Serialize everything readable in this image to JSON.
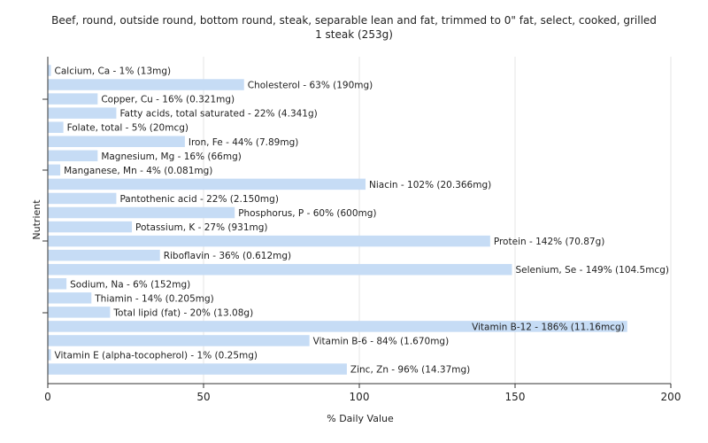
{
  "chart_data": {
    "type": "bar",
    "orientation": "horizontal",
    "title_line1": "Beef, round, outside round, bottom round, steak, separable lean and fat, trimmed to 0\" fat, select, cooked,  grilled",
    "title_line2": "1 steak (253g)",
    "xlabel": "% Daily Value",
    "ylabel": "Nutrient",
    "xlim": [
      0,
      200
    ],
    "xticks": [
      0,
      50,
      100,
      150,
      200
    ],
    "grid": true,
    "bar_color": "#c6dcf5",
    "categories": [
      "Calcium, Ca - 1% (13mg)",
      "Cholesterol - 63% (190mg)",
      "Copper, Cu - 16% (0.321mg)",
      "Fatty acids, total saturated - 22% (4.341g)",
      "Folate, total - 5% (20mcg)",
      "Iron, Fe - 44% (7.89mg)",
      "Magnesium, Mg - 16% (66mg)",
      "Manganese, Mn - 4% (0.081mg)",
      "Niacin - 102% (20.366mg)",
      "Pantothenic acid - 22% (2.150mg)",
      "Phosphorus, P - 60% (600mg)",
      "Potassium, K - 27% (931mg)",
      "Protein - 142% (70.87g)",
      "Riboflavin - 36% (0.612mg)",
      "Selenium, Se - 149% (104.5mcg)",
      "Sodium, Na - 6% (152mg)",
      "Thiamin - 14% (0.205mg)",
      "Total lipid (fat) - 20% (13.08g)",
      "Vitamin B-12 - 186% (11.16mcg)",
      "Vitamin B-6 - 84% (1.670mg)",
      "Vitamin E (alpha-tocopherol) - 1% (0.25mg)",
      "Zinc, Zn - 96% (14.37mg)"
    ],
    "values": [
      1,
      63,
      16,
      22,
      5,
      44,
      16,
      4,
      102,
      22,
      60,
      27,
      142,
      36,
      149,
      6,
      14,
      20,
      186,
      84,
      1,
      96
    ]
  }
}
